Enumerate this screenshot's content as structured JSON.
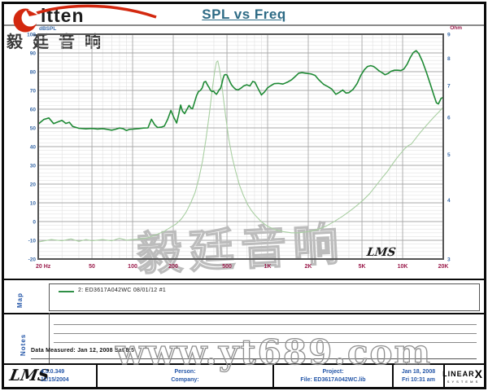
{
  "header": {
    "brand": "ritten",
    "brand_cn": "毅廷音响",
    "title": "SPL vs Freq"
  },
  "watermarks": {
    "chart_cn": "毅廷音响",
    "site": "www.yt689.com",
    "lms_plot": "LMS"
  },
  "chart_data": {
    "type": "line",
    "title": "SPL vs Freq",
    "grid": "on",
    "x_axis": {
      "scale": "log",
      "min": 20,
      "max": 20000,
      "ticks": [
        {
          "f": 20,
          "label": "20 Hz"
        },
        {
          "f": 50,
          "label": "50"
        },
        {
          "f": 100,
          "label": "100"
        },
        {
          "f": 200,
          "label": "200"
        },
        {
          "f": 500,
          "label": "500"
        },
        {
          "f": 1000,
          "label": "1K"
        },
        {
          "f": 2000,
          "label": "2K"
        },
        {
          "f": 5000,
          "label": "5K"
        },
        {
          "f": 10000,
          "label": "10K"
        },
        {
          "f": 20000,
          "label": "20K"
        }
      ]
    },
    "y_left": {
      "label": "dBSPL",
      "min": -20,
      "max": 100,
      "ticks": [
        100,
        90,
        80,
        70,
        60,
        50,
        40,
        30,
        20,
        10,
        0,
        -10,
        -20
      ]
    },
    "y_right": {
      "label": "Ohm",
      "scale": "log",
      "min": 3,
      "max": 9,
      "ticks": [
        9,
        8,
        7,
        6,
        5,
        4,
        3
      ]
    },
    "series": [
      {
        "name": "Impedance (Ohm)",
        "axis": "right",
        "color": "#a9cfa2",
        "width": 1.1,
        "points": [
          [
            20,
            3.26
          ],
          [
            25,
            3.3
          ],
          [
            30,
            3.28
          ],
          [
            35,
            3.31
          ],
          [
            40,
            3.27
          ],
          [
            45,
            3.3
          ],
          [
            50,
            3.28
          ],
          [
            60,
            3.3
          ],
          [
            70,
            3.28
          ],
          [
            80,
            3.32
          ],
          [
            90,
            3.29
          ],
          [
            100,
            3.3
          ],
          [
            115,
            3.31
          ],
          [
            130,
            3.33
          ],
          [
            150,
            3.38
          ],
          [
            170,
            3.43
          ],
          [
            190,
            3.5
          ],
          [
            210,
            3.56
          ],
          [
            230,
            3.65
          ],
          [
            250,
            3.78
          ],
          [
            270,
            3.95
          ],
          [
            290,
            4.15
          ],
          [
            310,
            4.45
          ],
          [
            330,
            4.85
          ],
          [
            350,
            5.4
          ],
          [
            370,
            6.1
          ],
          [
            390,
            6.9
          ],
          [
            405,
            7.5
          ],
          [
            418,
            7.85
          ],
          [
            428,
            7.9
          ],
          [
            440,
            7.6
          ],
          [
            455,
            7.15
          ],
          [
            470,
            6.6
          ],
          [
            490,
            6.0
          ],
          [
            515,
            5.4
          ],
          [
            545,
            4.95
          ],
          [
            580,
            4.6
          ],
          [
            620,
            4.3
          ],
          [
            660,
            4.1
          ],
          [
            710,
            3.92
          ],
          [
            760,
            3.8
          ],
          [
            820,
            3.7
          ],
          [
            900,
            3.6
          ],
          [
            1000,
            3.52
          ],
          [
            1150,
            3.46
          ],
          [
            1300,
            3.43
          ],
          [
            1500,
            3.41
          ],
          [
            1700,
            3.41
          ],
          [
            2000,
            3.43
          ],
          [
            2300,
            3.46
          ],
          [
            2700,
            3.52
          ],
          [
            3100,
            3.6
          ],
          [
            3600,
            3.7
          ],
          [
            4100,
            3.8
          ],
          [
            4600,
            3.9
          ],
          [
            5100,
            4.0
          ],
          [
            5700,
            4.13
          ],
          [
            6300,
            4.28
          ],
          [
            7000,
            4.45
          ],
          [
            7700,
            4.6
          ],
          [
            8400,
            4.77
          ],
          [
            9100,
            4.92
          ],
          [
            9800,
            5.05
          ],
          [
            10400,
            5.15
          ],
          [
            11000,
            5.22
          ],
          [
            11600,
            5.26
          ],
          [
            12300,
            5.38
          ],
          [
            13200,
            5.52
          ],
          [
            14200,
            5.66
          ],
          [
            15300,
            5.8
          ],
          [
            16400,
            5.93
          ],
          [
            17500,
            6.05
          ],
          [
            18600,
            6.16
          ],
          [
            19300,
            6.23
          ],
          [
            20000,
            6.3
          ]
        ]
      },
      {
        "name": "2: ED3617A042WC 08/01/12 #1",
        "axis": "left",
        "color": "#1f8a35",
        "width": 1.6,
        "points": [
          [
            20,
            52
          ],
          [
            22,
            54.5
          ],
          [
            24,
            55.3
          ],
          [
            26,
            52.3
          ],
          [
            28,
            53.2
          ],
          [
            30,
            54
          ],
          [
            32,
            52.4
          ],
          [
            34,
            53
          ],
          [
            36,
            50.8
          ],
          [
            40,
            49.8
          ],
          [
            45,
            49.5
          ],
          [
            50,
            49.7
          ],
          [
            55,
            49.4
          ],
          [
            60,
            49.6
          ],
          [
            65,
            49.2
          ],
          [
            70,
            48.8
          ],
          [
            75,
            49.3
          ],
          [
            80,
            49.9
          ],
          [
            85,
            49.6
          ],
          [
            90,
            48.6
          ],
          [
            95,
            49.2
          ],
          [
            100,
            49.3
          ],
          [
            110,
            49.6
          ],
          [
            120,
            49.9
          ],
          [
            130,
            50
          ],
          [
            138,
            54.6
          ],
          [
            146,
            51.6
          ],
          [
            153,
            50.2
          ],
          [
            163,
            50.4
          ],
          [
            172,
            51
          ],
          [
            182,
            54.6
          ],
          [
            192,
            59.3
          ],
          [
            202,
            55.6
          ],
          [
            212,
            52.6
          ],
          [
            220,
            57.6
          ],
          [
            227,
            62.2
          ],
          [
            234,
            59
          ],
          [
            243,
            57.6
          ],
          [
            252,
            59.8
          ],
          [
            262,
            62
          ],
          [
            270,
            60.6
          ],
          [
            278,
            60.2
          ],
          [
            288,
            63.8
          ],
          [
            298,
            67.2
          ],
          [
            308,
            69.4
          ],
          [
            318,
            70
          ],
          [
            328,
            71.4
          ],
          [
            338,
            74.4
          ],
          [
            348,
            74.8
          ],
          [
            358,
            73
          ],
          [
            368,
            71.6
          ],
          [
            378,
            70
          ],
          [
            388,
            69.4
          ],
          [
            398,
            69.6
          ],
          [
            408,
            68.6
          ],
          [
            418,
            67.9
          ],
          [
            428,
            69
          ],
          [
            438,
            70.4
          ],
          [
            448,
            71
          ],
          [
            458,
            73.4
          ],
          [
            468,
            76.4
          ],
          [
            478,
            78.2
          ],
          [
            488,
            78.5
          ],
          [
            500,
            78.2
          ],
          [
            520,
            75.4
          ],
          [
            540,
            73
          ],
          [
            560,
            71.6
          ],
          [
            580,
            70.6
          ],
          [
            605,
            70.3
          ],
          [
            635,
            71.2
          ],
          [
            665,
            72.4
          ],
          [
            700,
            73
          ],
          [
            740,
            72.4
          ],
          [
            775,
            74.8
          ],
          [
            805,
            74.4
          ],
          [
            850,
            71
          ],
          [
            900,
            67.6
          ],
          [
            950,
            69.2
          ],
          [
            1000,
            71.4
          ],
          [
            1060,
            72.6
          ],
          [
            1120,
            73.6
          ],
          [
            1200,
            73.8
          ],
          [
            1300,
            73.4
          ],
          [
            1400,
            74.4
          ],
          [
            1500,
            75.6
          ],
          [
            1600,
            77.4
          ],
          [
            1700,
            79.2
          ],
          [
            1800,
            79.5
          ],
          [
            1900,
            79.2
          ],
          [
            2000,
            79
          ],
          [
            2100,
            78.8
          ],
          [
            2250,
            78
          ],
          [
            2400,
            75.6
          ],
          [
            2600,
            73.2
          ],
          [
            2800,
            72
          ],
          [
            3000,
            70.6
          ],
          [
            3200,
            67.9
          ],
          [
            3400,
            69
          ],
          [
            3600,
            70.2
          ],
          [
            3800,
            68.6
          ],
          [
            4000,
            68.8
          ],
          [
            4300,
            70.6
          ],
          [
            4600,
            73.6
          ],
          [
            4900,
            78
          ],
          [
            5200,
            81
          ],
          [
            5500,
            82.8
          ],
          [
            5800,
            83.2
          ],
          [
            6100,
            82.8
          ],
          [
            6400,
            81.6
          ],
          [
            6700,
            80.4
          ],
          [
            7000,
            79.6
          ],
          [
            7400,
            78.4
          ],
          [
            7800,
            79
          ],
          [
            8200,
            80.2
          ],
          [
            8700,
            80.8
          ],
          [
            9200,
            80.8
          ],
          [
            9700,
            80.6
          ],
          [
            10200,
            81.4
          ],
          [
            10800,
            84
          ],
          [
            11400,
            87.6
          ],
          [
            12000,
            90.2
          ],
          [
            12600,
            91.2
          ],
          [
            13200,
            89.6
          ],
          [
            14000,
            85.6
          ],
          [
            15000,
            79.6
          ],
          [
            16000,
            73.6
          ],
          [
            17000,
            67.6
          ],
          [
            17800,
            63.4
          ],
          [
            18400,
            62.8
          ],
          [
            19200,
            65.6
          ],
          [
            20000,
            66.4
          ]
        ]
      }
    ]
  },
  "map_section": {
    "label": "Map",
    "legend": {
      "swatch_color": "#2f8f46",
      "text": "2: ED3617A042WC  08/01/12  #1"
    }
  },
  "notes_section": {
    "label": "Notes",
    "data_measured": "Data Measured: Jan 12, 2008  Sat  8:5"
  },
  "footer": {
    "lms_logo": "LMS",
    "version": "4.5.0.349",
    "version_date": "11/15/2004",
    "person_label": "Person:",
    "company_label": "Company:",
    "project_label": "Project:",
    "file_label": "File: ED3617A042WC.lib",
    "date": "Jan 18, 2008",
    "time": "Fri 10:31 am",
    "brand_linear": "LINEAR",
    "brand_x": "X",
    "brand_systems": "S Y S T E M S"
  },
  "colors": {
    "title": "#2e6b85",
    "axis_blue": "#3a6aa8",
    "axis_maroon": "#9b1b4b",
    "footer_blue": "#2456a8",
    "spl_green": "#1f8a35",
    "imp_green": "#a9cfa2",
    "logo_red": "#d3280f"
  }
}
